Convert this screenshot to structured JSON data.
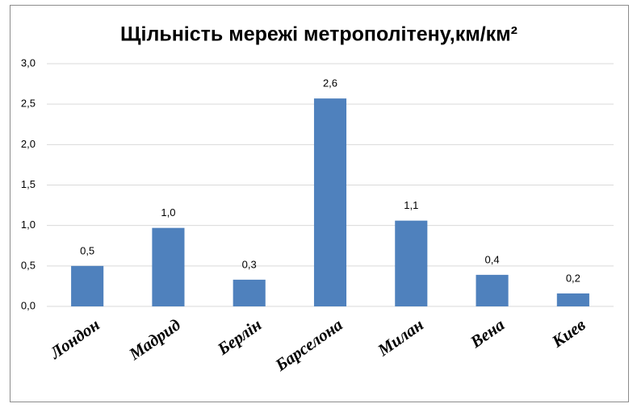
{
  "chart_data": {
    "type": "bar",
    "title": "Щільність мережі метрополітену,км/км²",
    "categories": [
      "Лондон",
      "Мадрид",
      "Берлін",
      "Барселона",
      "Милан",
      "Вена",
      "Киев"
    ],
    "values": [
      0.5,
      0.97,
      0.33,
      2.57,
      1.06,
      0.39,
      0.16
    ],
    "value_labels": [
      "0,5",
      "1,0",
      "0,3",
      "2,6",
      "1,1",
      "0,4",
      "0,2"
    ],
    "color": "#4f81bd",
    "ylim": [
      0,
      3
    ],
    "yticks": [
      {
        "value": 0,
        "label": "0,0"
      },
      {
        "value": 0.5,
        "label": "0,5"
      },
      {
        "value": 1,
        "label": "1,0"
      },
      {
        "value": 1.5,
        "label": "1,5"
      },
      {
        "value": 2,
        "label": "2,0"
      },
      {
        "value": 2.5,
        "label": "2,5"
      },
      {
        "value": 3,
        "label": "3,0"
      }
    ],
    "grid": true
  }
}
